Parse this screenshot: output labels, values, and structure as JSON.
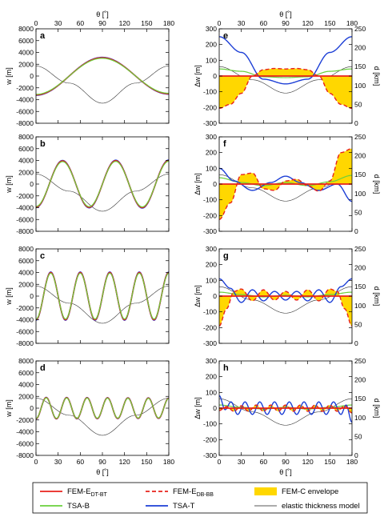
{
  "chart_data": {
    "type": "line",
    "x_axis": {
      "label": "θ [˚]",
      "ticks": [
        0,
        30,
        60,
        90,
        120,
        150,
        180
      ],
      "lim": [
        0,
        180
      ]
    },
    "panels": [
      {
        "id": "a",
        "column": "left",
        "ylabel": "w [m]",
        "ylim": [
          -8000,
          8000
        ],
        "yticks": [
          -8000,
          -6000,
          -4000,
          -2000,
          0,
          2000,
          4000,
          6000,
          8000
        ],
        "n_waves": 1,
        "amp_start": -3200,
        "amp_end": -3000
      },
      {
        "id": "b",
        "column": "left",
        "ylabel": "w [m]",
        "ylim": [
          -8000,
          8000
        ],
        "yticks": [
          -8000,
          -6000,
          -4000,
          -2000,
          0,
          2000,
          4000,
          6000,
          8000
        ],
        "n_waves": 2.5,
        "amp_start": -3900,
        "amp_end": 4000
      },
      {
        "id": "c",
        "column": "left",
        "ylabel": "w [m]",
        "ylim": [
          -8000,
          8000
        ],
        "yticks": [
          -8000,
          -6000,
          -4000,
          -2000,
          0,
          2000,
          4000,
          6000,
          8000
        ],
        "n_waves": 4.5,
        "amp_start": -4000,
        "amp_end": -4000
      },
      {
        "id": "d",
        "column": "left",
        "ylabel": "w [m]",
        "ylim": [
          -8000,
          8000
        ],
        "yticks": [
          -8000,
          -6000,
          -4000,
          -2000,
          0,
          2000,
          4000,
          6000,
          8000
        ],
        "n_waves": 6.5,
        "amp_start": -1800,
        "amp_end": 1700
      },
      {
        "id": "e",
        "column": "right",
        "ylabel": "Δw [m]",
        "y2label": "d [km]",
        "ylim": [
          -300,
          300
        ],
        "yticks": [
          -300,
          -200,
          -100,
          0,
          100,
          200,
          300
        ],
        "y2lim": [
          0,
          250
        ],
        "y2ticks": [
          0,
          50,
          100,
          150,
          200,
          250
        ]
      },
      {
        "id": "f",
        "column": "right",
        "ylabel": "Δw [m]",
        "y2label": "d [km]",
        "ylim": [
          -300,
          300
        ],
        "yticks": [
          -300,
          -200,
          -100,
          0,
          100,
          200,
          300
        ],
        "y2lim": [
          0,
          250
        ],
        "y2ticks": [
          0,
          50,
          100,
          150,
          200,
          250
        ]
      },
      {
        "id": "g",
        "column": "right",
        "ylabel": "Δw [m]",
        "y2label": "d [km]",
        "ylim": [
          -300,
          300
        ],
        "yticks": [
          -300,
          -200,
          -100,
          0,
          100,
          200,
          300
        ],
        "y2lim": [
          0,
          250
        ],
        "y2ticks": [
          0,
          50,
          100,
          150,
          200,
          250
        ]
      },
      {
        "id": "h",
        "column": "right",
        "ylabel": "Δw [m]",
        "y2label": "d [km]",
        "ylim": [
          -300,
          300
        ],
        "yticks": [
          -300,
          -200,
          -100,
          0,
          100,
          200,
          300
        ],
        "y2lim": [
          0,
          250
        ],
        "y2ticks": [
          0,
          50,
          100,
          150,
          200,
          250
        ]
      }
    ],
    "elastic_thickness_model": {
      "theta": [
        0,
        45,
        90,
        135,
        180
      ],
      "left_w": [
        1700,
        -1200,
        -4600,
        -1200,
        1700
      ],
      "right_d_km": [
        150,
        115,
        80,
        115,
        150
      ]
    },
    "legend_entries": [
      {
        "key": "fem_e_dtbt",
        "label_main": "FEM-E",
        "label_sub": "DT-BT",
        "color": "#e8221b",
        "style": "solid"
      },
      {
        "key": "fem_e_dbbb",
        "label_main": "FEM-E",
        "label_sub": "DB-BB",
        "color": "#e8221b",
        "style": "dashed"
      },
      {
        "key": "fem_c_env",
        "label_main": "FEM-C envelope",
        "label_sub": "",
        "color": "#ffd700",
        "style": "fill"
      },
      {
        "key": "tsa_b",
        "label_main": "TSA-B",
        "label_sub": "",
        "color": "#6ad03c",
        "style": "solid"
      },
      {
        "key": "tsa_t",
        "label_main": "TSA-T",
        "label_sub": "",
        "color": "#1d3fd6",
        "style": "solid"
      },
      {
        "key": "elastic",
        "label_main": "elastic thickness model",
        "label_sub": "",
        "color": "#222222",
        "style": "thin"
      }
    ],
    "right_panel_series": {
      "e": {
        "tsa_t": {
          "theta": [
            0,
            30,
            60,
            90,
            120,
            150,
            180
          ],
          "dw": [
            250,
            150,
            -20,
            -50,
            -20,
            150,
            250
          ]
        },
        "tsa_b": {
          "theta": [
            0,
            30,
            60,
            90,
            120,
            150,
            180
          ],
          "dw": [
            45,
            30,
            -5,
            -10,
            -5,
            30,
            45
          ]
        },
        "fem_e_dbbb": {
          "theta": [
            0,
            15,
            30,
            45,
            60,
            75,
            90,
            105,
            120,
            135,
            150,
            165,
            180
          ],
          "dw": [
            -205,
            -180,
            -110,
            0,
            40,
            48,
            45,
            48,
            40,
            0,
            -110,
            -180,
            -205
          ]
        }
      },
      "f": {
        "tsa_t": {
          "theta": [
            0,
            20,
            45,
            70,
            90,
            110,
            135,
            160,
            180
          ],
          "dw": [
            100,
            20,
            -40,
            10,
            50,
            10,
            -40,
            0,
            -110
          ]
        },
        "tsa_b": {
          "theta": [
            0,
            30,
            60,
            90,
            120,
            150,
            180
          ],
          "dw": [
            40,
            10,
            -10,
            10,
            -10,
            15,
            55
          ]
        },
        "fem_e_dbbb": {
          "theta": [
            0,
            15,
            30,
            45,
            60,
            75,
            90,
            105,
            120,
            135,
            150,
            165,
            180
          ],
          "dw": [
            -225,
            -120,
            60,
            70,
            -30,
            -40,
            20,
            30,
            -10,
            -45,
            20,
            200,
            225
          ]
        }
      },
      "g": {
        "tsa_t": {
          "theta": [
            0,
            15,
            30,
            45,
            60,
            75,
            90,
            105,
            120,
            135,
            150,
            165,
            180
          ],
          "dw": [
            110,
            50,
            -40,
            40,
            -30,
            30,
            -25,
            30,
            -30,
            40,
            -40,
            60,
            110
          ]
        },
        "tsa_b": {
          "theta": [
            0,
            30,
            60,
            90,
            120,
            150,
            180
          ],
          "dw": [
            25,
            10,
            -5,
            5,
            -5,
            10,
            25
          ]
        },
        "fem_e_dbbb": {
          "theta": [
            0,
            10,
            20,
            30,
            45,
            60,
            75,
            90,
            105,
            120,
            135,
            150,
            160,
            170,
            180
          ],
          "dw": [
            -190,
            -80,
            30,
            45,
            -30,
            40,
            -25,
            30,
            -25,
            40,
            -30,
            45,
            30,
            -80,
            -190
          ]
        }
      },
      "h": {
        "tsa_t": {
          "theta": [
            0,
            8,
            16,
            25,
            35,
            45,
            55,
            65,
            75,
            85,
            95,
            105,
            115,
            125,
            135,
            145,
            155,
            165,
            172,
            180
          ],
          "dw": [
            80,
            -10,
            40,
            -40,
            40,
            -40,
            40,
            -40,
            40,
            -40,
            40,
            -40,
            40,
            -40,
            40,
            -40,
            40,
            -40,
            20,
            -90
          ]
        },
        "tsa_b": {
          "theta": [
            0,
            30,
            60,
            90,
            120,
            150,
            180
          ],
          "dw": [
            20,
            5,
            -5,
            5,
            -5,
            5,
            20
          ]
        },
        "fem_e_dbbb": {
          "theta": [
            0,
            10,
            20,
            30,
            40,
            50,
            60,
            70,
            80,
            90,
            100,
            110,
            120,
            130,
            140,
            150,
            160,
            170,
            180
          ],
          "dw": [
            -15,
            10,
            -20,
            15,
            -20,
            20,
            -20,
            20,
            -20,
            20,
            -20,
            20,
            -20,
            20,
            -20,
            20,
            -20,
            15,
            -30
          ]
        }
      }
    }
  }
}
